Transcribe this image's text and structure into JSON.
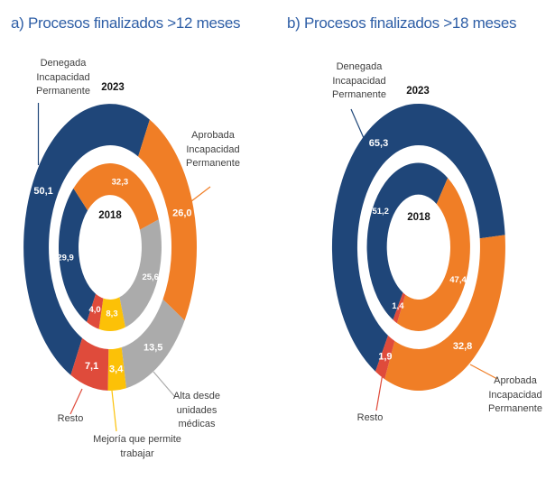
{
  "title_color": "#2E5EA6",
  "value_label_color": "#FFFFFF",
  "chart_data": [
    {
      "id": "a",
      "type": "donut-nested",
      "title": "a) Procesos finalizados >12 meses",
      "legend_position": "callouts",
      "units": "percent",
      "categories": [
        "Denegada Incapacidad Permanente",
        "Aprobada Incapacidad Permanente",
        "Alta desde unidades médicas",
        "Mejoría que permite trabajar",
        "Resto"
      ],
      "colors": [
        "#1F4679",
        "#F07E26",
        "#ABABAB",
        "#FCC107",
        "#DF4B3B"
      ],
      "series": [
        {
          "name": "2023",
          "ring": "outer",
          "values": [
            50.1,
            26.0,
            13.5,
            3.4,
            7.1
          ],
          "labels": [
            "50,1",
            "26,0",
            "13,5",
            "3,4",
            "7,1"
          ]
        },
        {
          "name": "2018",
          "ring": "inner",
          "values": [
            29.9,
            32.3,
            25.6,
            8.3,
            4.0
          ],
          "labels": [
            "29,9",
            "32,3",
            "25,6",
            "8,3",
            "4,0"
          ]
        }
      ]
    },
    {
      "id": "b",
      "type": "donut-nested",
      "title": "b) Procesos finalizados >18 meses",
      "legend_position": "callouts",
      "units": "percent",
      "categories": [
        "Denegada Incapacidad Permanente",
        "Aprobada Incapacidad Permanente",
        "Resto"
      ],
      "colors": [
        "#1F4679",
        "#F07E26",
        "#DF4B3B"
      ],
      "series": [
        {
          "name": "2023",
          "ring": "outer",
          "values": [
            65.3,
            32.8,
            1.9
          ],
          "labels": [
            "65,3",
            "32,8",
            "1,9"
          ]
        },
        {
          "name": "2018",
          "ring": "inner",
          "values": [
            51.2,
            47.4,
            1.4
          ],
          "labels": [
            "51,2",
            "47,4",
            "1,4"
          ]
        }
      ]
    }
  ]
}
